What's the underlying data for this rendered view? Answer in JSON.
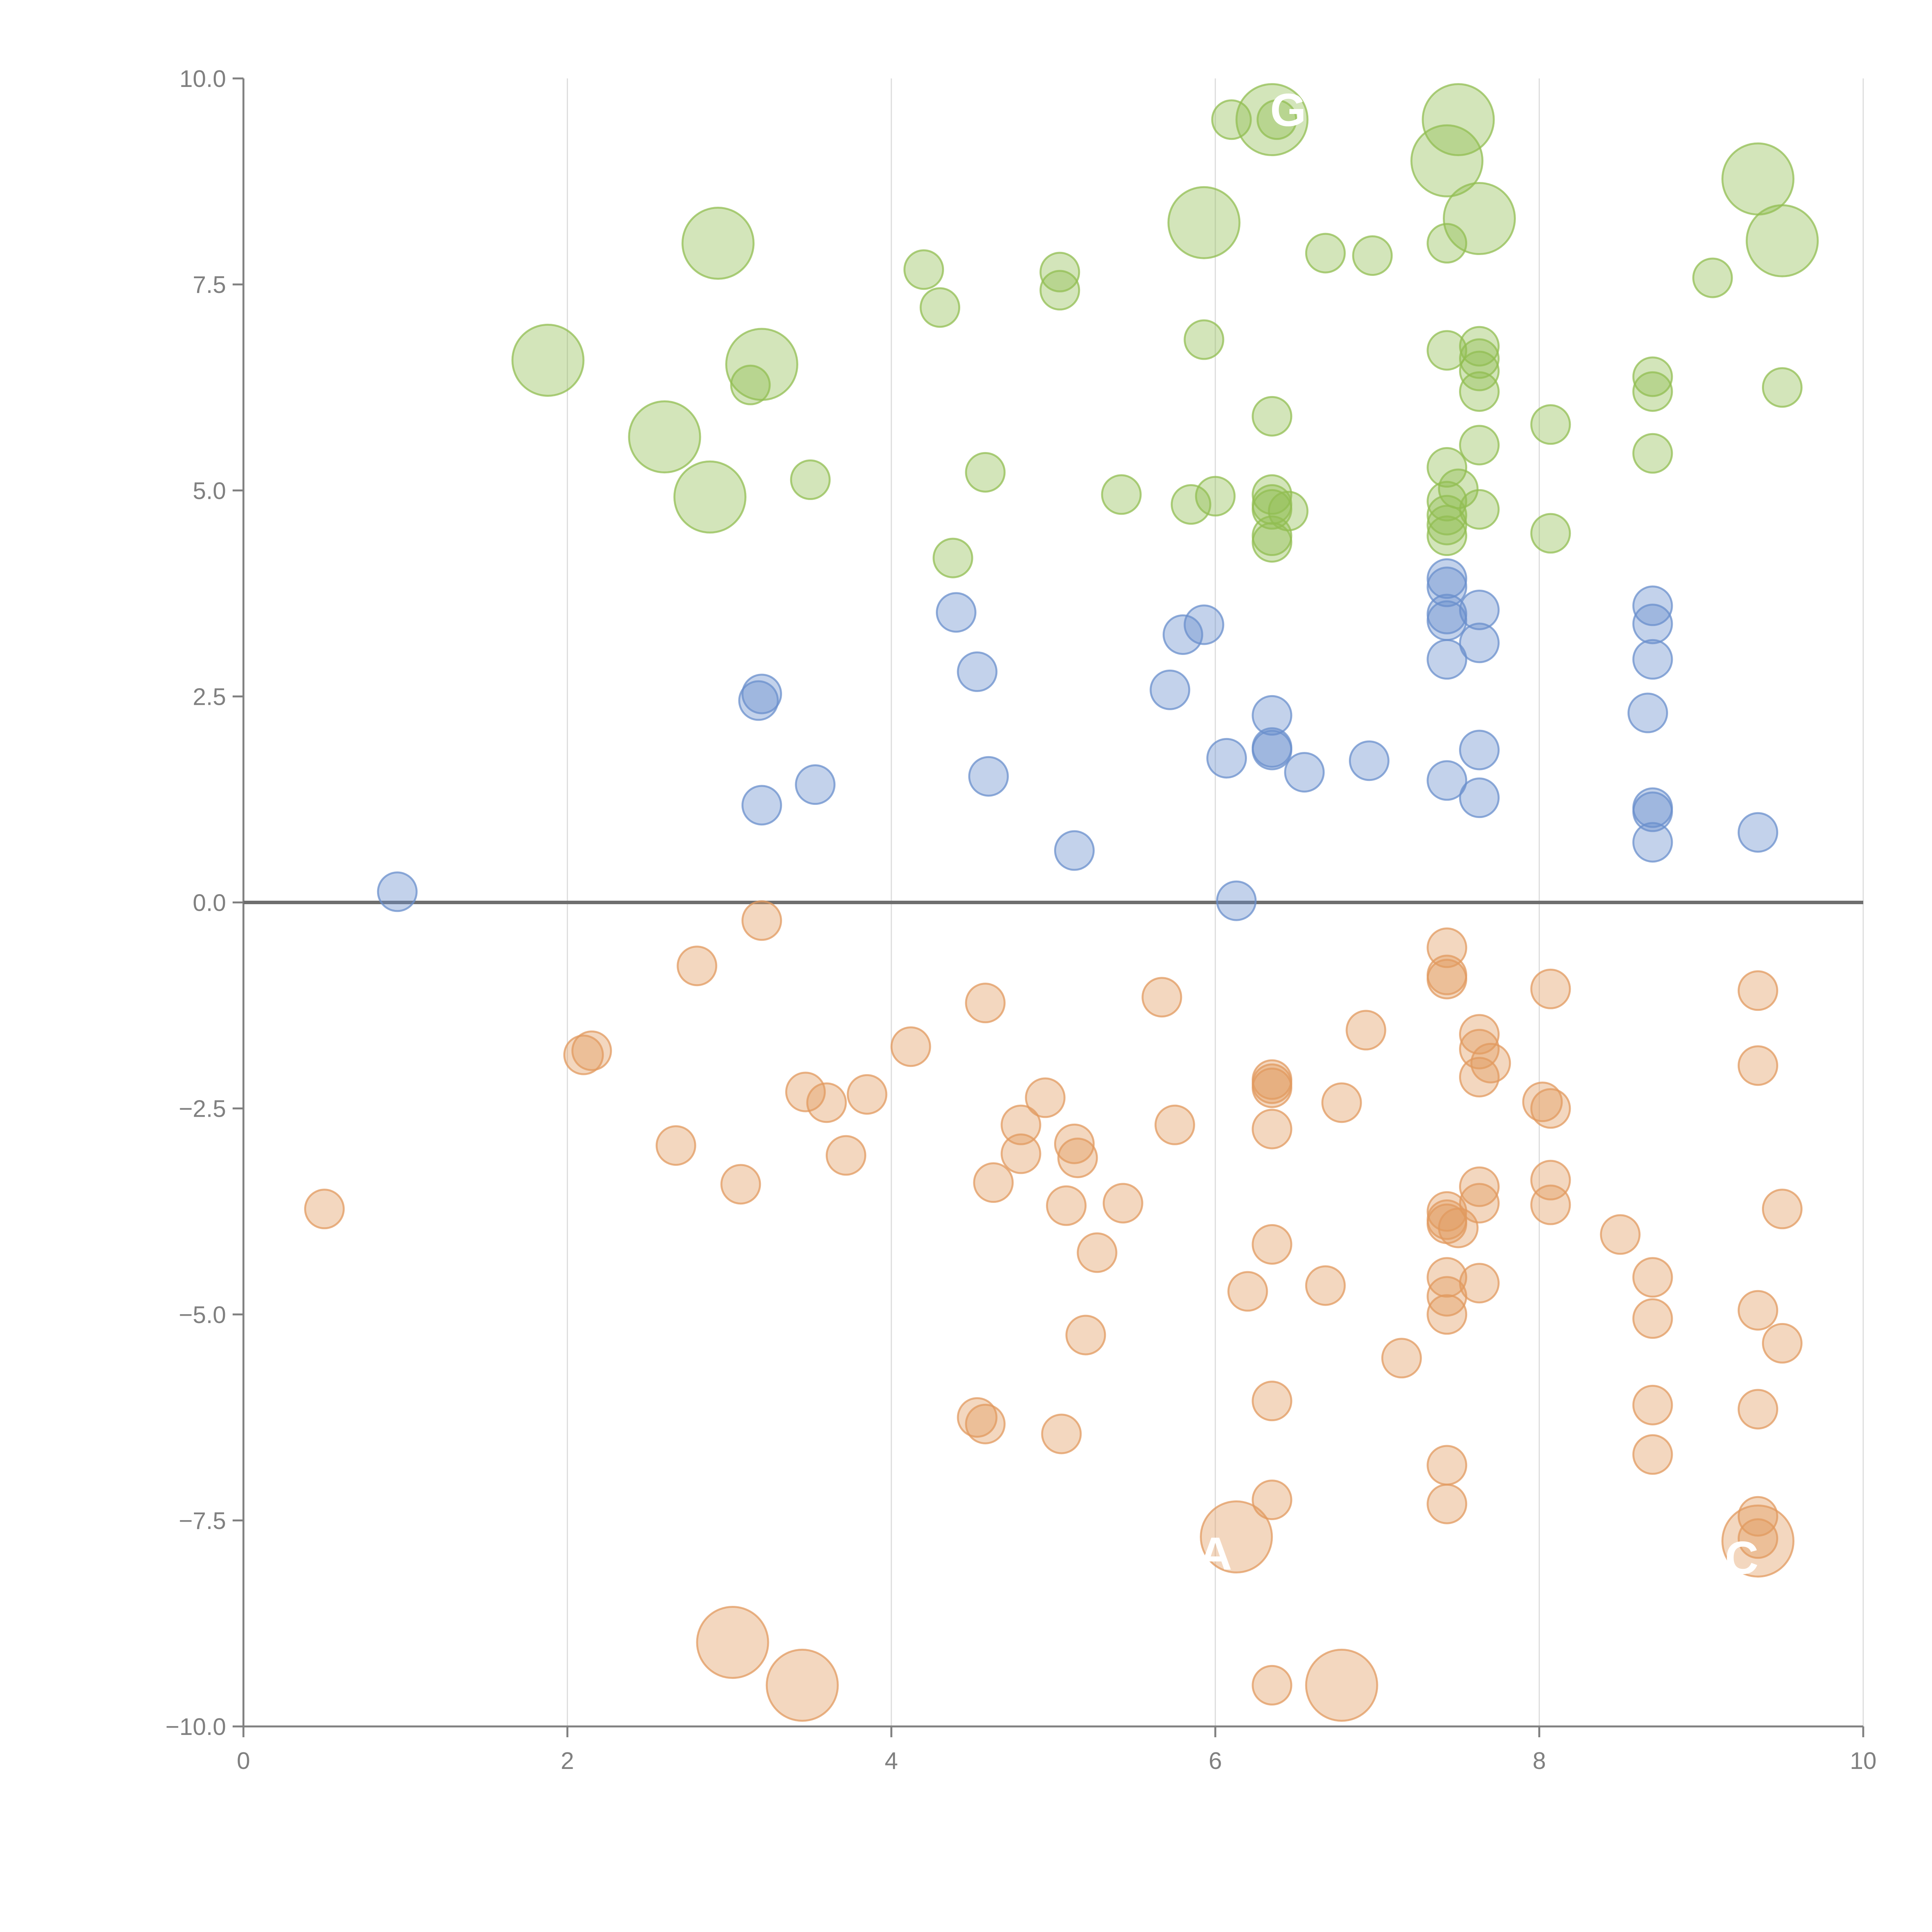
{
  "chart_data": {
    "type": "scatter",
    "title": "",
    "xlabel": "",
    "ylabel": "",
    "xlim": [
      0,
      10
    ],
    "ylim": [
      -10,
      10
    ],
    "x_ticks": [
      0,
      2,
      4,
      6,
      8,
      10
    ],
    "x_tick_labels": [
      "0",
      "2",
      "4",
      "6",
      "8",
      "10"
    ],
    "y_ticks": [
      10,
      7.5,
      5,
      2.5,
      0,
      -2.5,
      -5,
      -7.5,
      -10
    ],
    "y_tick_labels": [
      "10.0",
      "7.5",
      "5.0",
      "2.5",
      "0.0",
      "−2.5",
      "−5.0",
      "−7.5",
      "−10.0"
    ],
    "vertical_gridlines": true,
    "horizontal_zero_line": true,
    "marker_opacity": 0.4,
    "series": [
      {
        "name": "green",
        "color": "#92bd52",
        "points": [
          [
            6.1,
            9.5,
            "s"
          ],
          [
            6.35,
            9.5,
            "l"
          ],
          [
            6.38,
            9.5,
            "s"
          ],
          [
            7.5,
            9.5,
            "l"
          ],
          [
            7.43,
            9.0,
            "l"
          ],
          [
            9.35,
            8.78,
            "l"
          ],
          [
            9.5,
            8.03,
            "l"
          ],
          [
            7.63,
            8.3,
            "l"
          ],
          [
            5.93,
            8.25,
            "l"
          ],
          [
            2.93,
            8.0,
            "l"
          ],
          [
            7.43,
            8.0,
            "s"
          ],
          [
            6.68,
            7.88,
            "s"
          ],
          [
            6.97,
            7.85,
            "s"
          ],
          [
            4.2,
            7.68,
            "s"
          ],
          [
            5.04,
            7.65,
            "s"
          ],
          [
            9.07,
            7.58,
            "s"
          ],
          [
            5.04,
            7.43,
            "s"
          ],
          [
            4.3,
            7.22,
            "s"
          ],
          [
            1.88,
            6.58,
            "l"
          ],
          [
            3.2,
            6.53,
            "l"
          ],
          [
            3.13,
            6.28,
            "s"
          ],
          [
            5.93,
            6.83,
            "s"
          ],
          [
            7.43,
            6.7,
            "s"
          ],
          [
            7.63,
            6.75,
            "s"
          ],
          [
            7.63,
            6.6,
            "s"
          ],
          [
            7.63,
            6.45,
            "s"
          ],
          [
            8.7,
            6.38,
            "s"
          ],
          [
            8.7,
            6.2,
            "s"
          ],
          [
            9.5,
            6.25,
            "s"
          ],
          [
            7.63,
            6.2,
            "s"
          ],
          [
            6.35,
            5.9,
            "s"
          ],
          [
            8.07,
            5.8,
            "s"
          ],
          [
            2.6,
            5.65,
            "l"
          ],
          [
            7.63,
            5.55,
            "s"
          ],
          [
            8.7,
            5.45,
            "s"
          ],
          [
            7.43,
            5.28,
            "s"
          ],
          [
            4.58,
            5.22,
            "s"
          ],
          [
            3.5,
            5.13,
            "s"
          ],
          [
            7.5,
            5.02,
            "s"
          ],
          [
            2.88,
            4.92,
            "l"
          ],
          [
            5.42,
            4.95,
            "s"
          ],
          [
            6.0,
            4.93,
            "s"
          ],
          [
            6.35,
            4.95,
            "s"
          ],
          [
            5.85,
            4.83,
            "s"
          ],
          [
            6.35,
            4.83,
            "s"
          ],
          [
            6.35,
            4.77,
            "s"
          ],
          [
            6.45,
            4.75,
            "s"
          ],
          [
            7.43,
            4.87,
            "s"
          ],
          [
            7.63,
            4.77,
            "s"
          ],
          [
            7.43,
            4.7,
            "s"
          ],
          [
            7.43,
            4.58,
            "s"
          ],
          [
            7.43,
            4.45,
            "s"
          ],
          [
            6.35,
            4.45,
            "s"
          ],
          [
            6.35,
            4.37,
            "s"
          ],
          [
            8.07,
            4.48,
            "s"
          ],
          [
            4.38,
            4.18,
            "s"
          ]
        ]
      },
      {
        "name": "blue",
        "color": "#6a8fcc",
        "points": [
          [
            7.43,
            3.93,
            "s"
          ],
          [
            7.43,
            3.83,
            "s"
          ],
          [
            8.7,
            3.6,
            "s"
          ],
          [
            7.63,
            3.55,
            "s"
          ],
          [
            4.4,
            3.52,
            "s"
          ],
          [
            7.43,
            3.5,
            "s"
          ],
          [
            7.43,
            3.42,
            "s"
          ],
          [
            8.7,
            3.38,
            "s"
          ],
          [
            5.93,
            3.37,
            "s"
          ],
          [
            5.8,
            3.25,
            "s"
          ],
          [
            7.63,
            3.15,
            "s"
          ],
          [
            7.43,
            2.95,
            "s"
          ],
          [
            8.7,
            2.95,
            "s"
          ],
          [
            4.53,
            2.8,
            "s"
          ],
          [
            5.72,
            2.58,
            "s"
          ],
          [
            3.2,
            2.53,
            "s"
          ],
          [
            3.18,
            2.45,
            "s"
          ],
          [
            8.67,
            2.3,
            "s"
          ],
          [
            6.35,
            2.27,
            "s"
          ],
          [
            6.35,
            1.88,
            "s"
          ],
          [
            6.35,
            1.85,
            "s"
          ],
          [
            7.63,
            1.85,
            "s"
          ],
          [
            6.07,
            1.75,
            "s"
          ],
          [
            6.95,
            1.72,
            "s"
          ],
          [
            6.55,
            1.58,
            "s"
          ],
          [
            4.6,
            1.53,
            "s"
          ],
          [
            7.43,
            1.48,
            "s"
          ],
          [
            3.53,
            1.43,
            "s"
          ],
          [
            7.63,
            1.27,
            "s"
          ],
          [
            3.2,
            1.18,
            "s"
          ],
          [
            8.7,
            1.15,
            "s"
          ],
          [
            8.7,
            1.1,
            "s"
          ],
          [
            9.35,
            0.85,
            "s"
          ],
          [
            8.7,
            0.73,
            "s"
          ],
          [
            5.13,
            0.63,
            "s"
          ],
          [
            0.95,
            0.13,
            "s"
          ],
          [
            6.13,
            0.02,
            "s"
          ]
        ]
      },
      {
        "name": "orange",
        "color": "#e29a5f",
        "points": [
          [
            3.2,
            -0.22,
            "s"
          ],
          [
            7.43,
            -0.55,
            "s"
          ],
          [
            2.8,
            -0.77,
            "s"
          ],
          [
            7.43,
            -0.88,
            "s"
          ],
          [
            7.43,
            -0.93,
            "s"
          ],
          [
            8.07,
            -1.05,
            "s"
          ],
          [
            9.35,
            -1.07,
            "s"
          ],
          [
            5.67,
            -1.15,
            "s"
          ],
          [
            4.58,
            -1.22,
            "s"
          ],
          [
            6.93,
            -1.55,
            "s"
          ],
          [
            7.63,
            -1.6,
            "s"
          ],
          [
            4.12,
            -1.75,
            "s"
          ],
          [
            7.63,
            -1.78,
            "s"
          ],
          [
            2.15,
            -1.8,
            "s"
          ],
          [
            2.1,
            -1.85,
            "s"
          ],
          [
            7.7,
            -1.95,
            "s"
          ],
          [
            9.35,
            -1.98,
            "s"
          ],
          [
            6.35,
            -2.15,
            "s"
          ],
          [
            7.63,
            -2.12,
            "s"
          ],
          [
            6.35,
            -2.2,
            "s"
          ],
          [
            6.35,
            -2.25,
            "s"
          ],
          [
            3.47,
            -2.3,
            "s"
          ],
          [
            3.85,
            -2.33,
            "s"
          ],
          [
            4.95,
            -2.37,
            "s"
          ],
          [
            8.02,
            -2.42,
            "s"
          ],
          [
            6.78,
            -2.43,
            "s"
          ],
          [
            3.6,
            -2.43,
            "s"
          ],
          [
            8.07,
            -2.5,
            "s"
          ],
          [
            4.8,
            -2.7,
            "s"
          ],
          [
            5.75,
            -2.7,
            "s"
          ],
          [
            6.35,
            -2.75,
            "s"
          ],
          [
            2.67,
            -2.95,
            "s"
          ],
          [
            5.13,
            -2.93,
            "s"
          ],
          [
            4.8,
            -3.05,
            "s"
          ],
          [
            3.72,
            -3.07,
            "s"
          ],
          [
            5.15,
            -3.1,
            "s"
          ],
          [
            8.07,
            -3.37,
            "s"
          ],
          [
            3.07,
            -3.42,
            "s"
          ],
          [
            4.63,
            -3.4,
            "s"
          ],
          [
            7.63,
            -3.45,
            "s"
          ],
          [
            5.43,
            -3.65,
            "s"
          ],
          [
            7.63,
            -3.65,
            "s"
          ],
          [
            8.07,
            -3.67,
            "s"
          ],
          [
            5.08,
            -3.68,
            "s"
          ],
          [
            0.5,
            -3.72,
            "s"
          ],
          [
            9.5,
            -3.72,
            "s"
          ],
          [
            7.43,
            -3.75,
            "s"
          ],
          [
            7.43,
            -3.85,
            "s"
          ],
          [
            7.43,
            -3.9,
            "s"
          ],
          [
            7.5,
            -3.95,
            "s"
          ],
          [
            8.5,
            -4.03,
            "s"
          ],
          [
            6.35,
            -4.15,
            "s"
          ],
          [
            5.27,
            -4.25,
            "s"
          ],
          [
            7.43,
            -4.55,
            "s"
          ],
          [
            8.7,
            -4.55,
            "s"
          ],
          [
            7.63,
            -4.62,
            "s"
          ],
          [
            6.68,
            -4.65,
            "s"
          ],
          [
            6.2,
            -4.72,
            "s"
          ],
          [
            7.43,
            -4.78,
            "s"
          ],
          [
            9.35,
            -4.95,
            "s"
          ],
          [
            7.43,
            -5.0,
            "s"
          ],
          [
            8.7,
            -5.05,
            "s"
          ],
          [
            5.2,
            -5.25,
            "s"
          ],
          [
            9.5,
            -5.35,
            "s"
          ],
          [
            7.15,
            -5.53,
            "s"
          ],
          [
            6.35,
            -6.05,
            "s"
          ],
          [
            8.7,
            -6.1,
            "s"
          ],
          [
            9.35,
            -6.15,
            "s"
          ],
          [
            4.53,
            -6.25,
            "s"
          ],
          [
            4.58,
            -6.33,
            "s"
          ],
          [
            5.05,
            -6.45,
            "s"
          ],
          [
            8.7,
            -6.7,
            "s"
          ],
          [
            7.43,
            -6.83,
            "s"
          ],
          [
            6.35,
            -7.25,
            "s"
          ],
          [
            7.43,
            -7.3,
            "s"
          ],
          [
            9.35,
            -7.45,
            "s"
          ],
          [
            9.35,
            -7.72,
            "s"
          ],
          [
            6.13,
            -7.7,
            "l"
          ],
          [
            9.35,
            -7.75,
            "l"
          ],
          [
            3.02,
            -8.98,
            "l"
          ],
          [
            3.45,
            -9.5,
            "l"
          ],
          [
            6.35,
            -9.5,
            "s"
          ],
          [
            6.78,
            -9.5,
            "l"
          ]
        ]
      }
    ],
    "annotations": [
      {
        "text": "G",
        "x": 6.45,
        "y": 9.62
      },
      {
        "text": "A",
        "x": 6.0,
        "y": -7.9
      },
      {
        "text": "C",
        "x": 9.25,
        "y": -7.95
      }
    ]
  }
}
